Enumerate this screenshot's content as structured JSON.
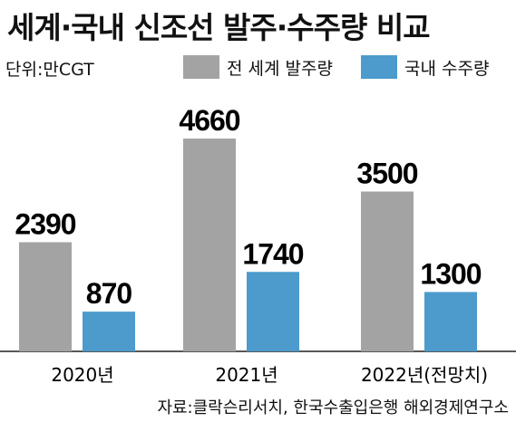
{
  "title": "세계·국내 신조선 발주·수주량 비교",
  "unit": "단위:만CGT",
  "source": "자료:클락슨리서치, 한국수출입은행 해외경제연구소",
  "chart_data": {
    "type": "bar",
    "categories": [
      "2020년",
      "2021년",
      "2022년(전망치)"
    ],
    "series": [
      {
        "name": "전 세계 발주량",
        "values": [
          2390,
          4660,
          3500
        ],
        "color": "#a3a3a3"
      },
      {
        "name": "국내 수주량",
        "values": [
          870,
          1740,
          1300
        ],
        "color": "#4c9bcc"
      }
    ],
    "ylim": [
      0,
      4660
    ],
    "legend_position": "top",
    "grid": false
  }
}
